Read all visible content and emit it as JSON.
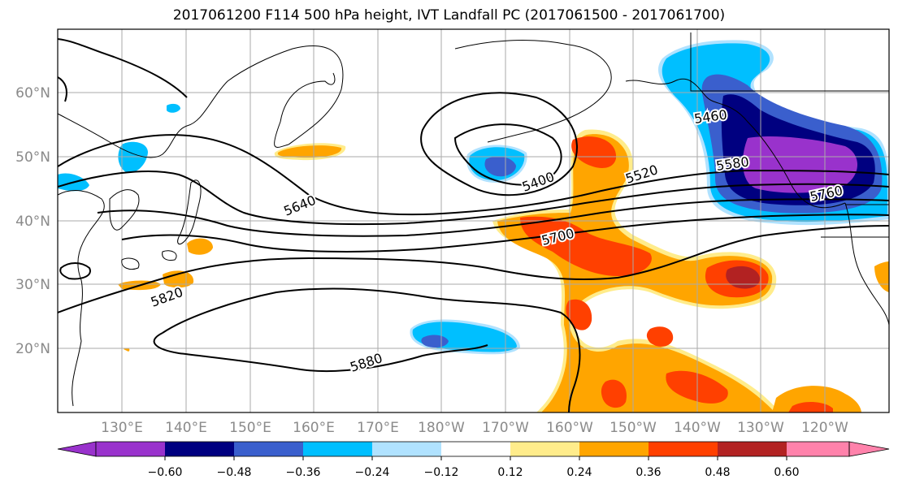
{
  "title": "2017061200 F114 500 hPa height, IVT Landfall PC (2017061500 - 2017061700)",
  "longitude_labels": [
    "130°E",
    "140°E",
    "150°E",
    "160°E",
    "170°E",
    "180°W",
    "170°W",
    "160°W",
    "150°W",
    "140°W",
    "130°W",
    "120°W"
  ],
  "latitude_labels": [
    "60°N",
    "50°N",
    "40°N",
    "30°N",
    "20°N"
  ],
  "contour_labels": [
    "5400",
    "5460",
    "5520",
    "5580",
    "5640",
    "5700",
    "5760",
    "5820",
    "5880"
  ],
  "colorbar": {
    "tick_labels": [
      "−0.60",
      "−0.48",
      "−0.36",
      "−0.24",
      "−0.12",
      "0.12",
      "0.24",
      "0.36",
      "0.48",
      "0.60"
    ],
    "colors": [
      "#9932CC",
      "#000080",
      "#3A5FCD",
      "#00BFFF",
      "#B0E2FF",
      "#FFFFFF",
      "#FFEC8B",
      "#FFA500",
      "#FF4000",
      "#B22222",
      "#FF82AB"
    ]
  }
}
